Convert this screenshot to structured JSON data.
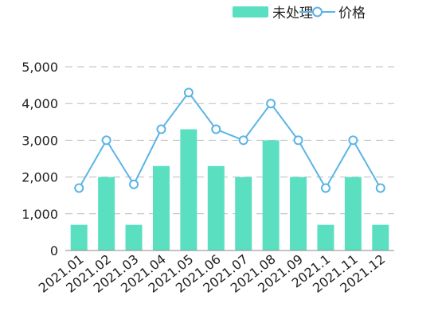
{
  "chart_data": {
    "type": "bar",
    "categories": [
      "2021.01",
      "2021.02",
      "2021.03",
      "2021.04",
      "2021.05",
      "2021.06",
      "2021.07",
      "2021.08",
      "2021.09",
      "2021.1",
      "2021.11",
      "2021.12"
    ],
    "series": [
      {
        "name": "未处理",
        "type": "bar",
        "color": "#5ae0c0",
        "values": [
          700,
          2000,
          700,
          2300,
          3300,
          2300,
          2000,
          3000,
          2000,
          700,
          2000,
          700
        ]
      },
      {
        "name": "价格",
        "type": "line",
        "color": "#5ab4e6",
        "values": [
          1700,
          3000,
          1800,
          3300,
          4300,
          3300,
          3000,
          4000,
          3000,
          1700,
          3000,
          1700
        ]
      }
    ],
    "ylim": [
      0,
      5000
    ],
    "yticks": [
      "0",
      "1,000",
      "2,000",
      "3,000",
      "4,000",
      "5,000"
    ],
    "grid": true,
    "legend_position": "top-right"
  }
}
